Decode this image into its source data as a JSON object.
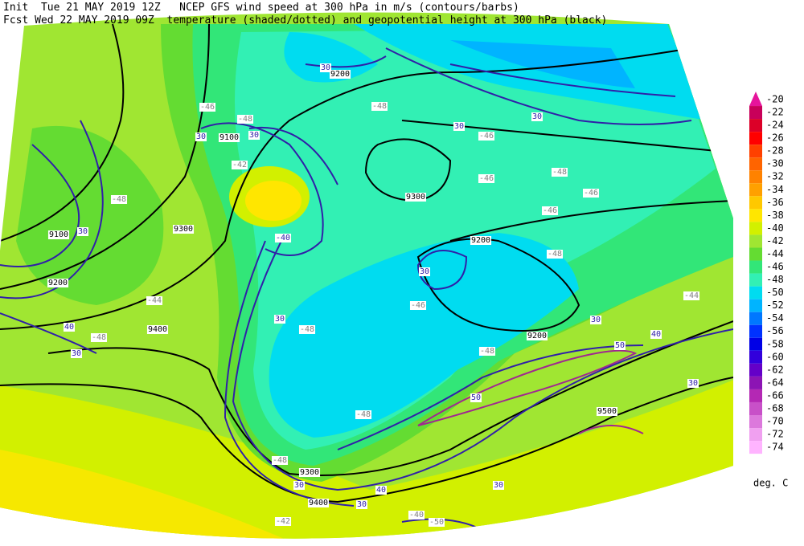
{
  "header": {
    "line1": "Init  Tue 21 MAY 2019 12Z   NCEP GFS wind speed at 300 hPa in m/s (contours/barbs)",
    "line2": "Fcst Wed 22 MAY 2019 09Z  temperature (shaded/dotted) and geopotential height at 300 hPa (black)"
  },
  "colorbar": {
    "levels": [
      -20,
      -22,
      -24,
      -26,
      -28,
      -30,
      -32,
      -34,
      -36,
      -38,
      -40,
      -42,
      -44,
      -46,
      -48,
      -50,
      -52,
      -54,
      -56,
      -58,
      -60,
      -62,
      -64,
      -66,
      -68,
      -70,
      -72,
      -74
    ],
    "colors": [
      "#e6149b",
      "#c8005a",
      "#dc0028",
      "#ff0000",
      "#ff4000",
      "#ff6400",
      "#ff8200",
      "#ffa000",
      "#ffc800",
      "#ffe600",
      "#d2f000",
      "#a0e632",
      "#64dc32",
      "#32e678",
      "#32f0b4",
      "#00dcf0",
      "#00b4ff",
      "#0078ff",
      "#0032ff",
      "#0000e6",
      "#3200dc",
      "#6400c8",
      "#8c14b4",
      "#b428b4",
      "#c850c8",
      "#dc78dc",
      "#f0a0f0",
      "#ffb4ff"
    ],
    "unit": "deg. C"
  },
  "contour_labels": [
    "30",
    "9200",
    "-46",
    "-48",
    "30",
    "9100",
    "30",
    "-42",
    "-48",
    "9100",
    "30",
    "9300",
    "-40",
    "9200",
    "-44",
    "40",
    "-48",
    "30",
    "9400",
    "30",
    "-48",
    "30",
    "9200",
    "-46",
    "9300",
    "-48",
    "30",
    "30",
    "-48",
    "-46",
    "-46",
    "-48",
    "-46",
    "-46",
    "-44",
    "9200",
    "30",
    "40",
    "50",
    "30",
    "9500",
    "-48",
    "-48",
    "-48",
    "9300",
    "30",
    "40",
    "9400",
    "30",
    "30",
    "-40",
    "-50",
    "-42",
    "50"
  ]
}
